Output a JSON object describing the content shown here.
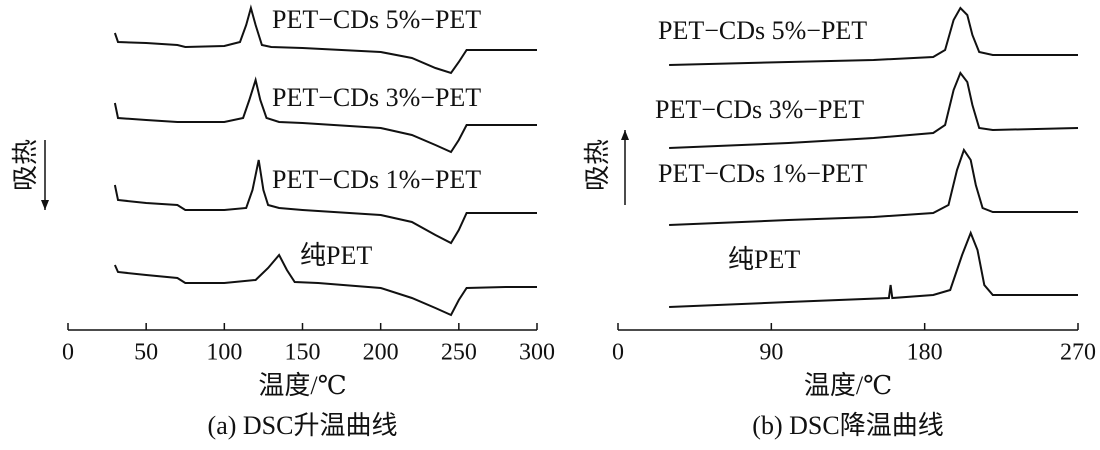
{
  "chart_data": [
    {
      "type": "line",
      "caption": "(a) DSC升温曲线",
      "xlabel": "温度/℃",
      "ylabel": "吸热",
      "ylabel_arrow": "down",
      "color": "#111111",
      "xlim": [
        0,
        300
      ],
      "xticks": [
        0,
        50,
        100,
        150,
        200,
        250,
        300
      ],
      "ylim": [
        0,
        33
      ],
      "series": [
        {
          "name": "PET−CDs 5%−PET",
          "x": [
            30,
            32,
            50,
            70,
            75,
            100,
            110,
            114,
            117,
            120,
            124,
            130,
            150,
            200,
            220,
            235,
            245,
            250,
            255,
            280,
            300
          ],
          "values": [
            29.7,
            28.8,
            28.7,
            28.5,
            28.3,
            28.4,
            28.8,
            30.5,
            32.2,
            30.5,
            28.5,
            28.3,
            28.2,
            27.8,
            27.2,
            26.2,
            25.7,
            26.8,
            28.0,
            28.0,
            28.0
          ]
        },
        {
          "name": "PET−CDs 3%−PET",
          "x": [
            30,
            32,
            50,
            70,
            100,
            112,
            116,
            120,
            123,
            127,
            135,
            150,
            200,
            220,
            235,
            245,
            250,
            255,
            280,
            300
          ],
          "values": [
            22.7,
            21.2,
            21.0,
            20.8,
            20.8,
            21.2,
            23.0,
            25.0,
            23.0,
            21.2,
            20.8,
            20.7,
            20.2,
            19.5,
            18.5,
            17.8,
            19.0,
            20.5,
            20.5,
            20.5
          ]
        },
        {
          "name": "PET−CDs 1%−PET",
          "x": [
            30,
            32,
            50,
            70,
            75,
            100,
            114,
            118,
            122,
            125,
            128,
            135,
            150,
            200,
            220,
            235,
            245,
            250,
            255,
            280,
            300
          ],
          "values": [
            14.5,
            13.0,
            12.7,
            12.5,
            12.0,
            12.0,
            12.2,
            14.0,
            17.0,
            14.0,
            12.5,
            12.2,
            12.0,
            11.5,
            10.8,
            9.5,
            8.7,
            10.0,
            11.7,
            11.7,
            11.7
          ]
        },
        {
          "name": "纯PET",
          "x": [
            30,
            32,
            50,
            70,
            75,
            100,
            120,
            128,
            135,
            140,
            145,
            160,
            200,
            220,
            235,
            245,
            250,
            255,
            280,
            300
          ],
          "values": [
            6.5,
            5.8,
            5.5,
            5.2,
            4.7,
            4.7,
            5.0,
            6.2,
            7.5,
            6.0,
            4.8,
            4.7,
            4.2,
            3.2,
            2.2,
            1.5,
            3.0,
            4.2,
            4.3,
            4.3
          ]
        }
      ]
    },
    {
      "type": "line",
      "caption": "(b) DSC降温曲线",
      "xlabel": "温度/℃",
      "ylabel": "吸热",
      "ylabel_arrow": "up",
      "color": "#111111",
      "xlim": [
        0,
        270
      ],
      "xticks": [
        0,
        90,
        180,
        270
      ],
      "ylim": [
        0,
        33
      ],
      "series": [
        {
          "name": "PET−CDs 5%−PET",
          "x": [
            30,
            100,
            150,
            185,
            192,
            197,
            201,
            205,
            208,
            212,
            220,
            270
          ],
          "values": [
            26.5,
            26.8,
            27.0,
            27.3,
            28.0,
            31.0,
            32.2,
            31.5,
            29.5,
            27.8,
            27.5,
            27.5
          ]
        },
        {
          "name": "PET−CDs 3%−PET",
          "x": [
            30,
            100,
            150,
            185,
            192,
            197,
            201,
            205,
            208,
            212,
            220,
            270
          ],
          "values": [
            18.2,
            18.7,
            19.2,
            19.7,
            20.5,
            24.0,
            25.7,
            24.8,
            22.5,
            20.2,
            20.0,
            20.2
          ]
        },
        {
          "name": "PET−CDs 1%−PET",
          "x": [
            30,
            100,
            150,
            185,
            194,
            199,
            203,
            207,
            210,
            214,
            220,
            270
          ],
          "values": [
            10.5,
            11.0,
            11.3,
            11.7,
            12.5,
            16.0,
            18.0,
            17.0,
            14.5,
            12.2,
            11.8,
            11.8
          ]
        },
        {
          "name": "纯PET",
          "x": [
            30,
            100,
            159,
            160,
            161,
            185,
            195,
            202,
            207,
            211,
            215,
            220,
            270
          ],
          "values": [
            2.3,
            2.8,
            3.2,
            4.5,
            3.2,
            3.5,
            4.0,
            7.5,
            9.7,
            8.0,
            4.5,
            3.5,
            3.5
          ]
        }
      ]
    }
  ]
}
